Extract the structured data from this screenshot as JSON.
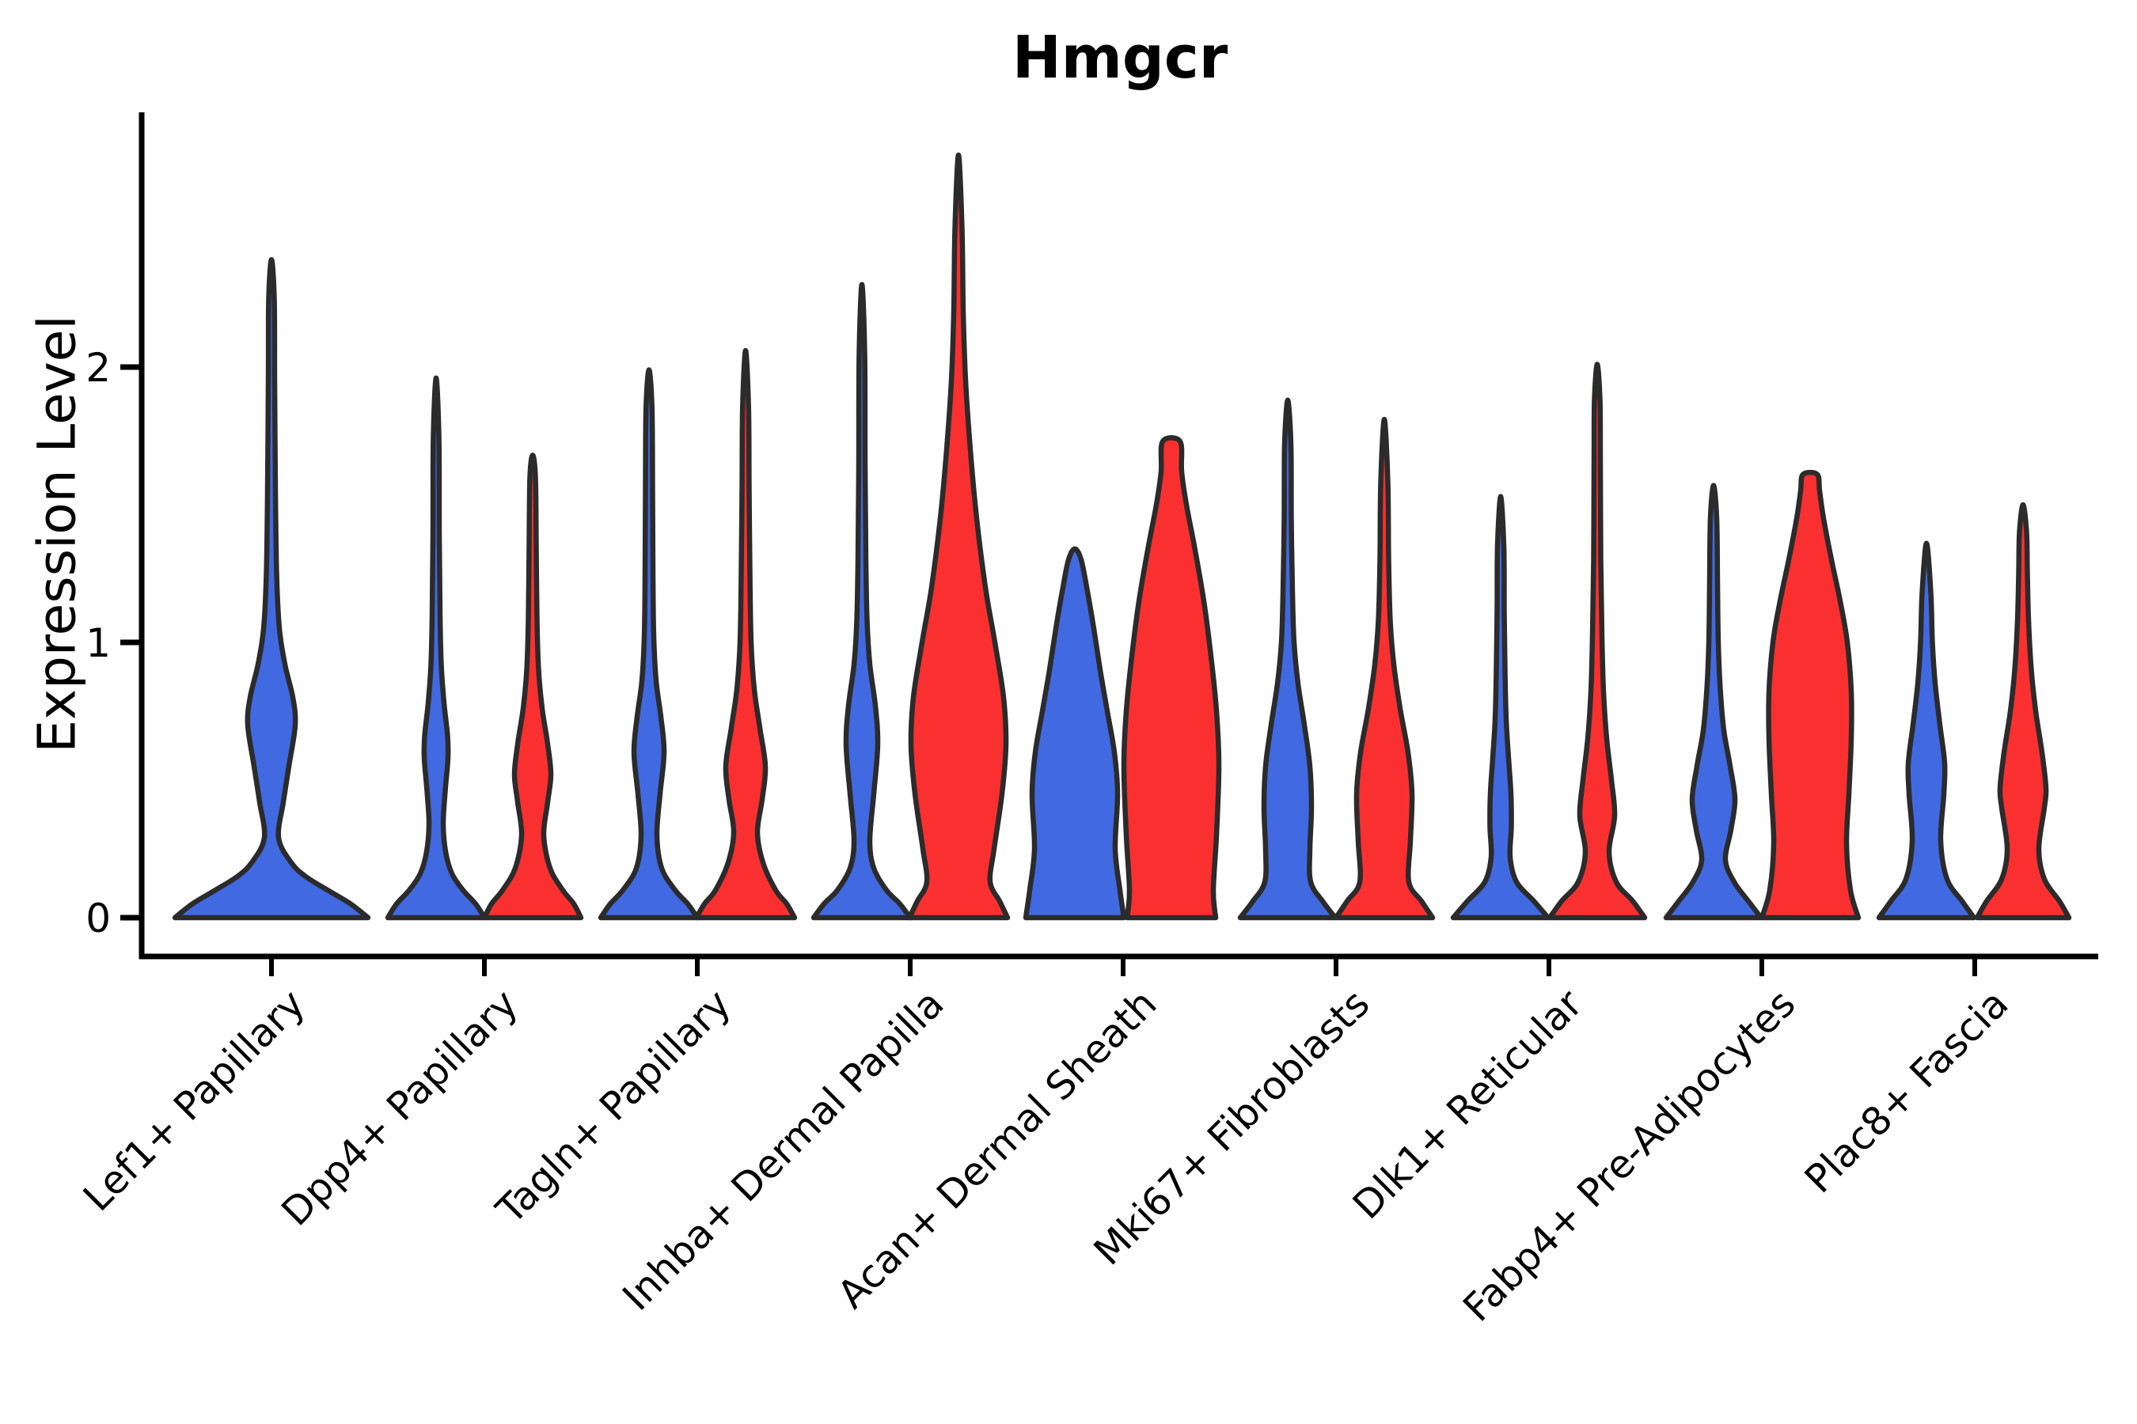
{
  "chart_data": {
    "type": "violin",
    "title": "Hmgcr",
    "ylabel": "Expression Level",
    "yticks": [
      0,
      1,
      2
    ],
    "ylim_drawn": [
      0,
      2.92
    ],
    "legend": "none",
    "categories": [
      "Lef1+ Papillary",
      "Dpp4+ Papillary",
      "Tagln+ Papillary",
      "Inhba+ Dermal Papilla",
      "Acan+ Dermal Sheath",
      "Mki67+ Fibroblasts",
      "Dlk1+ Reticular",
      "Fabp4+ Pre-Adipocytes",
      "Plac8+ Fascia"
    ],
    "colors": {
      "blue": "#4169E1",
      "red": "#FA3030",
      "outline": "#2B2B2B",
      "axis": "#000000"
    },
    "violins": [
      {
        "cat": 0,
        "split": "blue",
        "pos": "center",
        "max": 2.39,
        "cap": 0,
        "profile": [
          [
            0,
            122
          ],
          [
            0.05,
            100
          ],
          [
            0.1,
            71
          ],
          [
            0.15,
            43
          ],
          [
            0.2,
            25
          ],
          [
            0.29,
            9
          ],
          [
            0.42,
            15
          ],
          [
            0.55,
            22
          ],
          [
            0.7,
            30
          ],
          [
            0.8,
            27
          ],
          [
            0.92,
            17
          ],
          [
            1.05,
            10
          ],
          [
            1.25,
            6.5
          ],
          [
            1.55,
            5
          ],
          [
            1.95,
            4
          ],
          [
            2.25,
            3.5
          ],
          [
            2.39,
            0
          ]
        ]
      },
      {
        "cat": 1,
        "split": "blue",
        "pos": "left",
        "max": 1.96,
        "cap": 0,
        "profile": [
          [
            0,
            61
          ],
          [
            0.05,
            50
          ],
          [
            0.1,
            34
          ],
          [
            0.16,
            20
          ],
          [
            0.24,
            12
          ],
          [
            0.34,
            9
          ],
          [
            0.46,
            11.5
          ],
          [
            0.58,
            15
          ],
          [
            0.66,
            14.5
          ],
          [
            0.78,
            10
          ],
          [
            0.92,
            6.5
          ],
          [
            1.1,
            5
          ],
          [
            1.4,
            4
          ],
          [
            1.75,
            3.5
          ],
          [
            1.96,
            0
          ]
        ]
      },
      {
        "cat": 1,
        "split": "red",
        "pos": "right",
        "max": 1.68,
        "cap": 0,
        "profile": [
          [
            0,
            61
          ],
          [
            0.05,
            52
          ],
          [
            0.1,
            38
          ],
          [
            0.18,
            22
          ],
          [
            0.3,
            14
          ],
          [
            0.42,
            19
          ],
          [
            0.52,
            23
          ],
          [
            0.63,
            19
          ],
          [
            0.76,
            12
          ],
          [
            0.9,
            7.5
          ],
          [
            1.08,
            5.5
          ],
          [
            1.35,
            4.5
          ],
          [
            1.6,
            3.5
          ],
          [
            1.68,
            0
          ]
        ]
      },
      {
        "cat": 2,
        "split": "blue",
        "pos": "left",
        "max": 1.99,
        "cap": 0,
        "profile": [
          [
            0,
            61
          ],
          [
            0.05,
            49
          ],
          [
            0.1,
            33
          ],
          [
            0.18,
            16
          ],
          [
            0.3,
            10
          ],
          [
            0.45,
            14
          ],
          [
            0.6,
            19
          ],
          [
            0.73,
            15
          ],
          [
            0.86,
            9
          ],
          [
            1.02,
            6
          ],
          [
            1.25,
            5
          ],
          [
            1.55,
            4.5
          ],
          [
            1.85,
            3.8
          ],
          [
            1.99,
            0
          ]
        ]
      },
      {
        "cat": 2,
        "split": "red",
        "pos": "right",
        "max": 2.06,
        "cap": 0,
        "profile": [
          [
            0,
            62
          ],
          [
            0.05,
            52
          ],
          [
            0.1,
            38
          ],
          [
            0.2,
            22
          ],
          [
            0.31,
            15
          ],
          [
            0.43,
            21
          ],
          [
            0.55,
            25
          ],
          [
            0.69,
            18
          ],
          [
            0.83,
            11
          ],
          [
            1.0,
            7
          ],
          [
            1.25,
            5.5
          ],
          [
            1.55,
            4.5
          ],
          [
            1.85,
            3.8
          ],
          [
            2.06,
            0
          ]
        ]
      },
      {
        "cat": 3,
        "split": "blue",
        "pos": "left",
        "max": 2.3,
        "cap": 0,
        "profile": [
          [
            0,
            61
          ],
          [
            0.05,
            48
          ],
          [
            0.1,
            31
          ],
          [
            0.18,
            15
          ],
          [
            0.28,
            10
          ],
          [
            0.45,
            15
          ],
          [
            0.63,
            20
          ],
          [
            0.77,
            17
          ],
          [
            0.92,
            10
          ],
          [
            1.08,
            6.5
          ],
          [
            1.3,
            5
          ],
          [
            1.65,
            4
          ],
          [
            2.05,
            3.5
          ],
          [
            2.3,
            0
          ]
        ]
      },
      {
        "cat": 3,
        "split": "red",
        "pos": "right",
        "max": 2.77,
        "cap": 0,
        "profile": [
          [
            0,
            62
          ],
          [
            0.06,
            52
          ],
          [
            0.13,
            40
          ],
          [
            0.25,
            45
          ],
          [
            0.45,
            55
          ],
          [
            0.63,
            60
          ],
          [
            0.8,
            57
          ],
          [
            1.0,
            46
          ],
          [
            1.2,
            34
          ],
          [
            1.45,
            23
          ],
          [
            1.7,
            15
          ],
          [
            1.95,
            9
          ],
          [
            2.2,
            6
          ],
          [
            2.5,
            4.5
          ],
          [
            2.77,
            0
          ]
        ]
      },
      {
        "cat": 4,
        "split": "blue",
        "pos": "left",
        "max": 1.34,
        "cap": 0,
        "profile": [
          [
            0,
            62
          ],
          [
            0.1,
            57
          ],
          [
            0.25,
            51
          ],
          [
            0.45,
            54
          ],
          [
            0.6,
            50
          ],
          [
            0.75,
            41
          ],
          [
            0.9,
            32
          ],
          [
            1.05,
            24
          ],
          [
            1.2,
            15
          ],
          [
            1.3,
            8
          ],
          [
            1.34,
            0
          ]
        ]
      },
      {
        "cat": 4,
        "split": "red",
        "pos": "right",
        "max": 1.73,
        "cap": 11,
        "profile": [
          [
            0,
            56
          ],
          [
            0.1,
            53
          ],
          [
            0.3,
            57
          ],
          [
            0.55,
            60
          ],
          [
            0.75,
            57
          ],
          [
            0.95,
            50
          ],
          [
            1.15,
            41
          ],
          [
            1.35,
            29
          ],
          [
            1.5,
            19
          ],
          [
            1.62,
            13
          ],
          [
            1.73,
            11
          ]
        ]
      },
      {
        "cat": 5,
        "split": "blue",
        "pos": "left",
        "max": 1.88,
        "cap": 0,
        "profile": [
          [
            0,
            60
          ],
          [
            0.06,
            44
          ],
          [
            0.13,
            29
          ],
          [
            0.25,
            28
          ],
          [
            0.4,
            30
          ],
          [
            0.55,
            28
          ],
          [
            0.7,
            21
          ],
          [
            0.85,
            13
          ],
          [
            1.0,
            8
          ],
          [
            1.18,
            6
          ],
          [
            1.45,
            4.5
          ],
          [
            1.72,
            4
          ],
          [
            1.88,
            0
          ]
        ]
      },
      {
        "cat": 5,
        "split": "red",
        "pos": "right",
        "max": 1.81,
        "cap": 0,
        "profile": [
          [
            0,
            61
          ],
          [
            0.06,
            47
          ],
          [
            0.13,
            31
          ],
          [
            0.28,
            33
          ],
          [
            0.45,
            35
          ],
          [
            0.6,
            30
          ],
          [
            0.76,
            20
          ],
          [
            0.92,
            12
          ],
          [
            1.08,
            7.5
          ],
          [
            1.3,
            5.5
          ],
          [
            1.58,
            4.5
          ],
          [
            1.81,
            0
          ]
        ]
      },
      {
        "cat": 6,
        "split": "blue",
        "pos": "left",
        "max": 1.53,
        "cap": 0,
        "profile": [
          [
            0,
            60
          ],
          [
            0.06,
            42
          ],
          [
            0.13,
            20
          ],
          [
            0.22,
            12
          ],
          [
            0.33,
            13.5
          ],
          [
            0.45,
            13
          ],
          [
            0.58,
            10
          ],
          [
            0.72,
            7
          ],
          [
            0.9,
            5.5
          ],
          [
            1.12,
            4.5
          ],
          [
            1.35,
            4
          ],
          [
            1.53,
            0
          ]
        ]
      },
      {
        "cat": 6,
        "split": "red",
        "pos": "right",
        "max": 2.01,
        "cap": 0,
        "profile": [
          [
            0,
            60
          ],
          [
            0.06,
            45
          ],
          [
            0.13,
            24
          ],
          [
            0.24,
            15
          ],
          [
            0.37,
            22
          ],
          [
            0.5,
            18
          ],
          [
            0.65,
            12
          ],
          [
            0.82,
            8
          ],
          [
            1.02,
            6
          ],
          [
            1.3,
            4.5
          ],
          [
            1.65,
            4
          ],
          [
            1.88,
            3.5
          ],
          [
            2.01,
            0
          ]
        ]
      },
      {
        "cat": 7,
        "split": "blue",
        "pos": "left",
        "max": 1.57,
        "cap": 0,
        "profile": [
          [
            0,
            60
          ],
          [
            0.06,
            44
          ],
          [
            0.13,
            26
          ],
          [
            0.21,
            15
          ],
          [
            0.32,
            22
          ],
          [
            0.43,
            27
          ],
          [
            0.55,
            21
          ],
          [
            0.68,
            13
          ],
          [
            0.83,
            8.5
          ],
          [
            1.0,
            6
          ],
          [
            1.22,
            5
          ],
          [
            1.45,
            4
          ],
          [
            1.57,
            0
          ]
        ]
      },
      {
        "cat": 7,
        "split": "red",
        "pos": "right",
        "max": 1.61,
        "cap": 9,
        "profile": [
          [
            0,
            61
          ],
          [
            0.1,
            51
          ],
          [
            0.27,
            46
          ],
          [
            0.45,
            49
          ],
          [
            0.65,
            52
          ],
          [
            0.82,
            52
          ],
          [
            1.0,
            47
          ],
          [
            1.15,
            38
          ],
          [
            1.3,
            27
          ],
          [
            1.45,
            17
          ],
          [
            1.55,
            12
          ],
          [
            1.61,
            9
          ]
        ]
      },
      {
        "cat": 8,
        "split": "blue",
        "pos": "left",
        "max": 1.36,
        "cap": 0,
        "profile": [
          [
            0,
            60
          ],
          [
            0.06,
            45
          ],
          [
            0.14,
            26
          ],
          [
            0.28,
            18
          ],
          [
            0.45,
            22
          ],
          [
            0.56,
            23
          ],
          [
            0.7,
            17
          ],
          [
            0.85,
            11
          ],
          [
            1.0,
            7.5
          ],
          [
            1.18,
            5.5
          ],
          [
            1.36,
            0
          ]
        ]
      },
      {
        "cat": 8,
        "split": "red",
        "pos": "right",
        "max": 1.5,
        "cap": 0,
        "profile": [
          [
            0,
            58
          ],
          [
            0.06,
            46
          ],
          [
            0.14,
            27
          ],
          [
            0.25,
            20
          ],
          [
            0.4,
            27
          ],
          [
            0.47,
            29
          ],
          [
            0.6,
            24
          ],
          [
            0.75,
            16
          ],
          [
            0.9,
            10.5
          ],
          [
            1.08,
            7
          ],
          [
            1.25,
            5.5
          ],
          [
            1.4,
            4.5
          ],
          [
            1.5,
            0
          ]
        ]
      }
    ]
  }
}
